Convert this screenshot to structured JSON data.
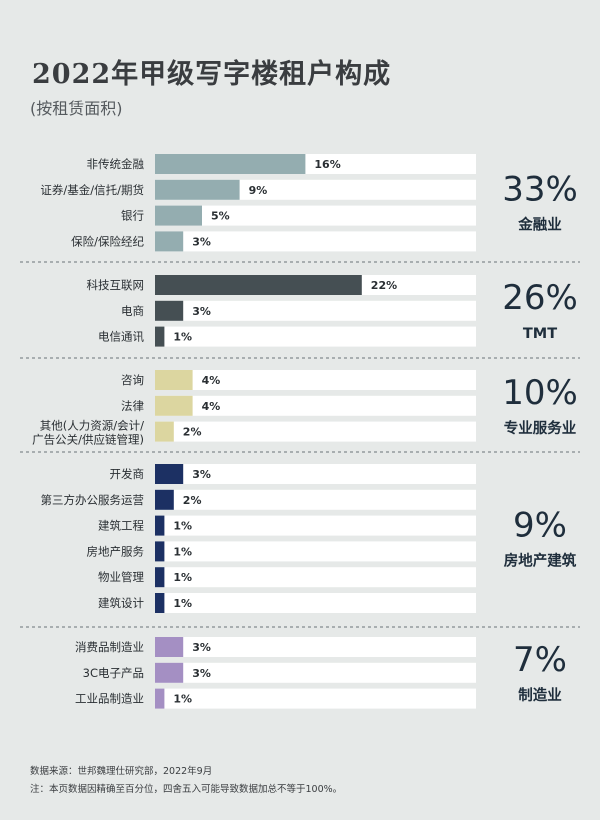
{
  "title": "2022年甲级写字楼租户构成",
  "subtitle": "(按租赁面积)",
  "footnotes": {
    "source": "数据来源：世邦魏理仕研究部，2022年9月",
    "note": "注：本页数据因精确至百分位，四舍五入可能导致数据加总不等于100%。"
  },
  "chart_data": {
    "type": "bar",
    "orientation": "horizontal",
    "title": "2022年甲级写字楼租户构成",
    "subtitle": "(按租赁面积)",
    "unit": "%",
    "xlim": [
      0,
      40
    ],
    "groups": [
      {
        "name": "金融业",
        "total": "33%",
        "color": "#94adb0",
        "items": [
          {
            "label": "非传统金融",
            "value": 16,
            "value_label": "16%"
          },
          {
            "label": "证券/基金/信托/期货",
            "value": 9,
            "value_label": "9%"
          },
          {
            "label": "银行",
            "value": 5,
            "value_label": "5%"
          },
          {
            "label": "保险/保险经纪",
            "value": 3,
            "value_label": "3%"
          }
        ]
      },
      {
        "name": "TMT",
        "total": "26%",
        "color": "#454f53",
        "items": [
          {
            "label": "科技互联网",
            "value": 22,
            "value_label": "22%"
          },
          {
            "label": "电商",
            "value": 3,
            "value_label": "3%"
          },
          {
            "label": "电信通讯",
            "value": 1,
            "value_label": "1%"
          }
        ]
      },
      {
        "name": "专业服务业",
        "total": "10%",
        "color": "#dcd6a0",
        "items": [
          {
            "label": "咨询",
            "value": 4,
            "value_label": "4%"
          },
          {
            "label": "法律",
            "value": 4,
            "value_label": "4%"
          },
          {
            "label": "其他(人力资源/会计/",
            "label2": "广告公关/供应链管理)",
            "value": 2,
            "value_label": "2%"
          }
        ]
      },
      {
        "name": "房地产建筑",
        "total": "9%",
        "color": "#1c3063",
        "items": [
          {
            "label": "开发商",
            "value": 3,
            "value_label": "3%"
          },
          {
            "label": "第三方办公服务运营",
            "value": 2,
            "value_label": "2%"
          },
          {
            "label": "建筑工程",
            "value": 1,
            "value_label": "1%"
          },
          {
            "label": "房地产服务",
            "value": 1,
            "value_label": "1%"
          },
          {
            "label": "物业管理",
            "value": 1,
            "value_label": "1%"
          },
          {
            "label": "建筑设计",
            "value": 1,
            "value_label": "1%"
          }
        ]
      },
      {
        "name": "制造业",
        "total": "7%",
        "color": "#a48fc3",
        "items": [
          {
            "label": "消费品制造业",
            "value": 3,
            "value_label": "3%"
          },
          {
            "label": "3C电子产品",
            "value": 3,
            "value_label": "3%"
          },
          {
            "label": "工业品制造业",
            "value": 1,
            "value_label": "1%"
          }
        ]
      }
    ]
  }
}
